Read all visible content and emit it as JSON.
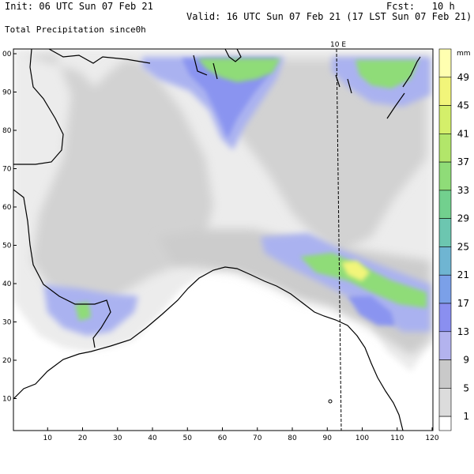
{
  "header": {
    "init": "Init: 06 UTC Sun 07 Feb 21",
    "fcst": "Fcst:   10 h",
    "valid": "Valid: 16 UTC Sun 07 Feb 21 (17 LST Sun 07 Feb 21)",
    "field": "Total Precipitation since0h"
  },
  "map": {
    "meridian_label": "10 E",
    "x_ticks": [
      "10",
      "20",
      "30",
      "40",
      "50",
      "60",
      "70",
      "80",
      "90",
      "100",
      "110",
      "120"
    ],
    "y_ticks": [
      "10",
      "20",
      "30",
      "40",
      "50",
      "60",
      "70",
      "80",
      "90",
      "00"
    ]
  },
  "colorbar": {
    "unit": "mm",
    "labels": [
      "49",
      "45",
      "41",
      "37",
      "33",
      "29",
      "25",
      "21",
      "17",
      "13",
      "9",
      "5",
      "1"
    ],
    "colors": [
      "#ffffb0",
      "#f2f57a",
      "#d4ef6a",
      "#b2e66a",
      "#8fdc78",
      "#72d08e",
      "#6cc6b0",
      "#6fb5d2",
      "#7ba0e8",
      "#8a8ff0",
      "#b3b3ee",
      "#c9c9c9",
      "#dcdcdc"
    ]
  },
  "colors": {
    "land_light": "#ececec",
    "land_mid": "#d2d2d2",
    "rain_light": "#aab2f0",
    "rain_mid": "#8a94f0",
    "rain_heavy": "#8fdc78",
    "rain_peak": "#f2f57a"
  }
}
